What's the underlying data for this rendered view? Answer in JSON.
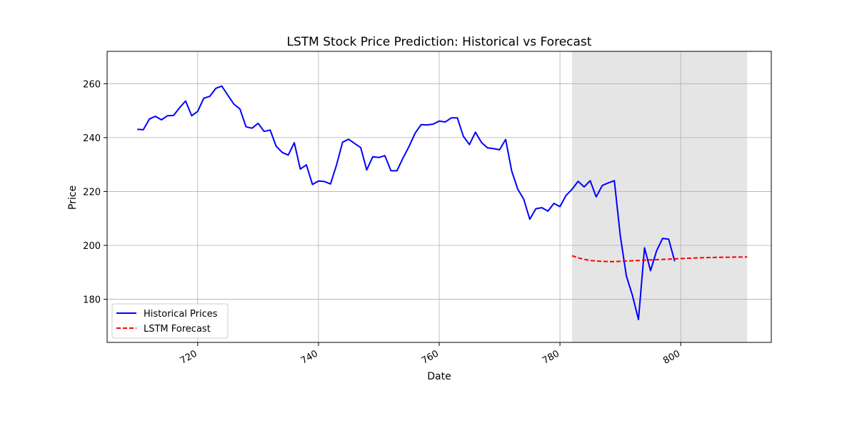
{
  "chart_data": {
    "type": "line",
    "title": "LSTM Stock Price Prediction: Historical vs Forecast",
    "xlabel": "Date",
    "ylabel": "Price",
    "xlim": [
      705,
      815
    ],
    "ylim": [
      164,
      272
    ],
    "xticks": [
      720,
      740,
      760,
      780,
      800
    ],
    "yticks": [
      180,
      200,
      220,
      240,
      260
    ],
    "grid": true,
    "legend_position": "lower-left",
    "shaded_region": {
      "x_start": 782,
      "x_end": 811,
      "color": "#e5e5e5"
    },
    "series": [
      {
        "name": "Historical Prices",
        "color": "#0000ff",
        "style": "solid",
        "x": [
          710,
          711,
          712,
          713,
          714,
          715,
          716,
          717,
          718,
          719,
          720,
          721,
          722,
          723,
          724,
          725,
          726,
          727,
          728,
          729,
          730,
          731,
          732,
          733,
          734,
          735,
          736,
          737,
          738,
          739,
          740,
          741,
          742,
          743,
          744,
          745,
          746,
          747,
          748,
          749,
          750,
          751,
          752,
          753,
          754,
          755,
          756,
          757,
          758,
          759,
          760,
          761,
          762,
          763,
          764,
          765,
          766,
          767,
          768,
          769,
          770,
          771,
          772,
          773,
          774,
          775,
          776,
          777,
          778,
          779,
          780,
          781,
          782,
          783,
          784,
          785,
          786,
          787,
          788,
          789,
          790,
          791,
          792,
          793,
          794,
          795,
          796,
          797,
          798,
          799
        ],
        "y": [
          243.1,
          242.9,
          246.9,
          247.9,
          246.6,
          248.1,
          248.2,
          251.1,
          253.6,
          248.1,
          249.7,
          254.6,
          255.3,
          258.3,
          259.1,
          255.7,
          252.4,
          250.6,
          244.0,
          243.5,
          245.3,
          242.3,
          242.8,
          236.8,
          234.5,
          233.5,
          238.1,
          228.3,
          229.9,
          222.6,
          223.9,
          223.7,
          222.8,
          229.9,
          238.3,
          239.4,
          237.8,
          236.3,
          228.0,
          232.9,
          232.6,
          233.3,
          227.7,
          227.7,
          232.4,
          236.7,
          241.6,
          244.8,
          244.7,
          245.0,
          246.1,
          245.8,
          247.3,
          247.3,
          240.5,
          237.4,
          242.0,
          238.2,
          236.2,
          235.9,
          235.5,
          239.3,
          227.6,
          220.9,
          217.1,
          209.7,
          213.6,
          214.0,
          212.7,
          215.6,
          214.4,
          218.5,
          220.8,
          223.8,
          221.7,
          224.0,
          218.0,
          222.2,
          223.2,
          224.0,
          203.5,
          188.6,
          181.5,
          172.5,
          199.1,
          190.6,
          198.0,
          202.6,
          202.3,
          194.1
        ]
      },
      {
        "name": "LSTM Forecast",
        "color": "#ff0000",
        "style": "dashed",
        "x": [
          782,
          783,
          784,
          785,
          786,
          787,
          788,
          789,
          790,
          791,
          792,
          793,
          794,
          795,
          796,
          797,
          798,
          799,
          800,
          801,
          802,
          803,
          804,
          805,
          806,
          807,
          808,
          809,
          810,
          811
        ],
        "y": [
          196.2,
          195.4,
          194.8,
          194.4,
          194.2,
          194.1,
          194.0,
          194.0,
          194.1,
          194.2,
          194.3,
          194.4,
          194.5,
          194.6,
          194.7,
          194.8,
          194.9,
          195.0,
          195.1,
          195.2,
          195.3,
          195.4,
          195.45,
          195.5,
          195.55,
          195.6,
          195.6,
          195.65,
          195.65,
          195.7
        ]
      }
    ]
  }
}
